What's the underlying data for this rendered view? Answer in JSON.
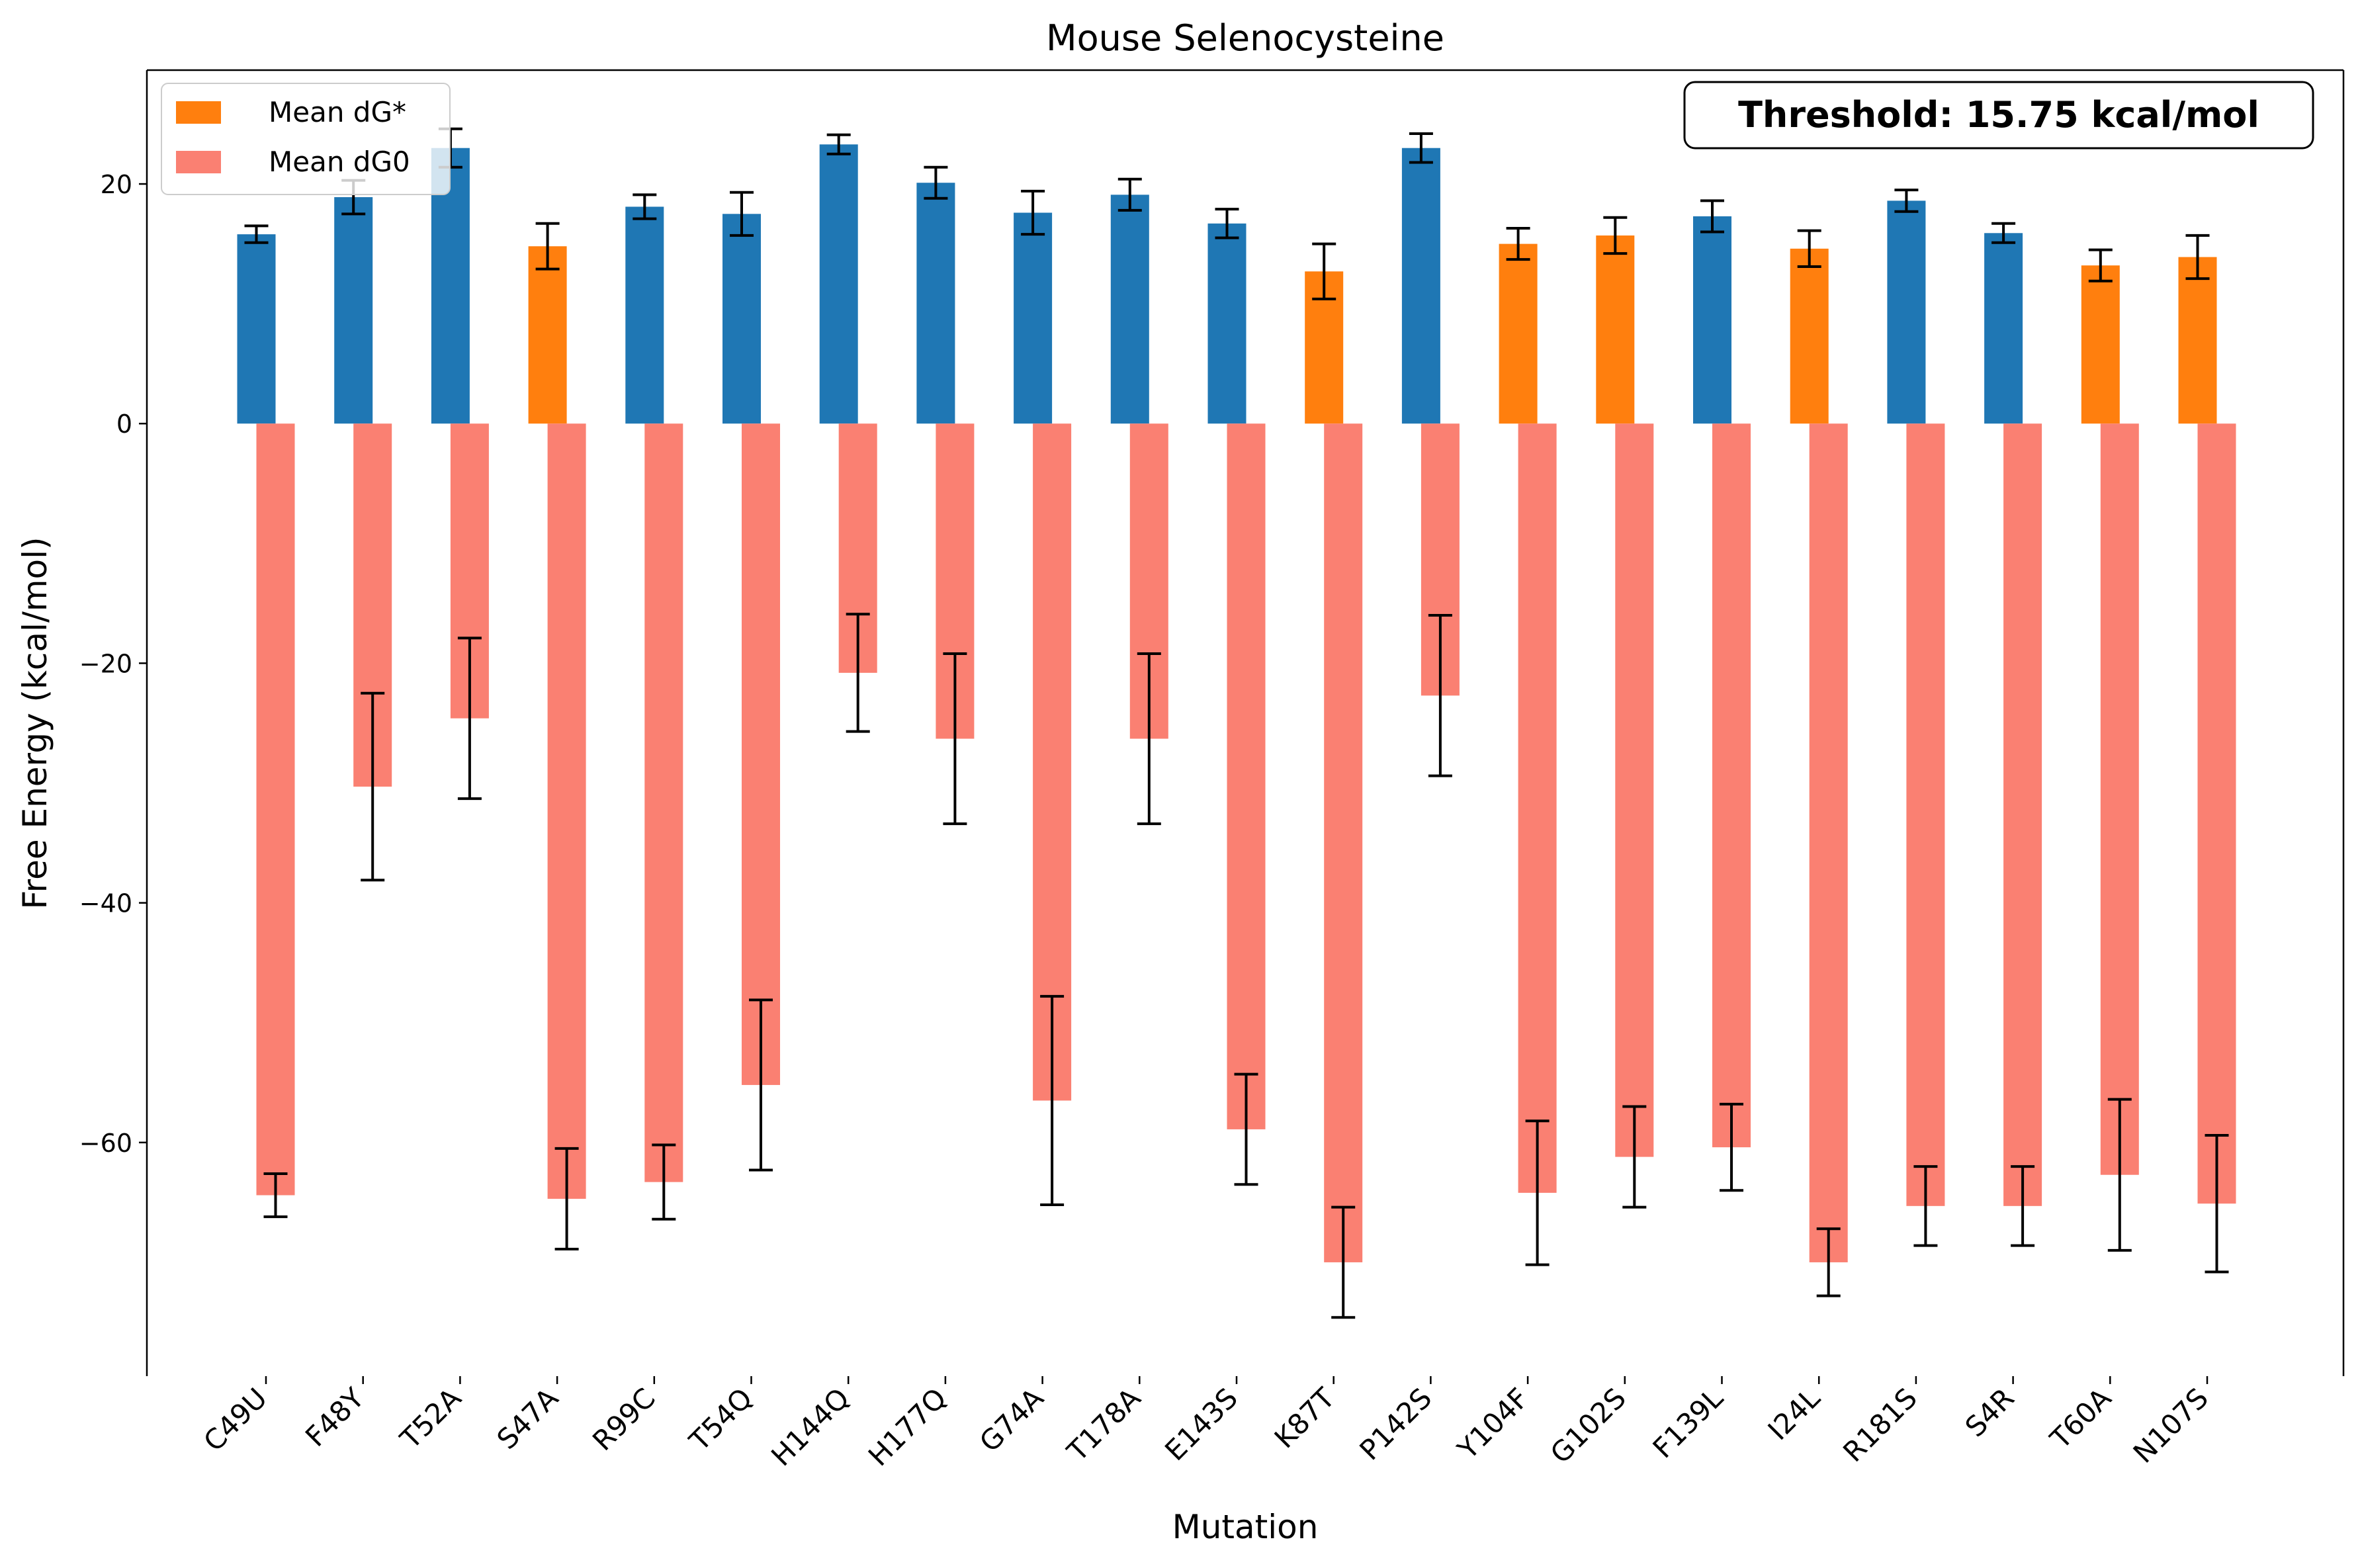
{
  "chart_data": {
    "type": "bar",
    "title": "Mouse Selenocysteine",
    "xlabel": "Mutation",
    "ylabel": "Free Energy (kcal/mol)",
    "ylim": [
      -79.5,
      29.5
    ],
    "yticks": [
      -60,
      -40,
      -20,
      0,
      20
    ],
    "ytick_labels": [
      "−60",
      "−40",
      "−20",
      "0",
      "20"
    ],
    "grid": false,
    "legend_position": "top-left",
    "annotation": "Threshold: 15.75 kcal/mol",
    "threshold": 15.75,
    "colors": {
      "dg_star_below": "#ff7f0e",
      "dg_star_above": "#1f77b4",
      "dg0": "#fa8072",
      "errorbar": "#000000"
    },
    "categories": [
      "C49U",
      "F48Y",
      "T52A",
      "S47A",
      "R99C",
      "T54Q",
      "H144Q",
      "H177Q",
      "G74A",
      "T178A",
      "E143S",
      "K87T",
      "P142S",
      "Y104F",
      "G102S",
      "F139L",
      "I24L",
      "R181S",
      "S4R",
      "T60A",
      "N107S"
    ],
    "series": [
      {
        "name": "Mean dG*",
        "values": [
          15.8,
          18.9,
          23.0,
          14.8,
          18.1,
          17.5,
          23.3,
          20.1,
          17.6,
          19.1,
          16.7,
          12.7,
          23.0,
          15.0,
          15.7,
          17.3,
          14.6,
          18.6,
          15.9,
          13.2,
          13.9
        ],
        "errors": [
          0.7,
          1.4,
          1.6,
          1.9,
          1.0,
          1.8,
          0.8,
          1.3,
          1.8,
          1.3,
          1.2,
          2.3,
          1.2,
          1.3,
          1.5,
          1.3,
          1.5,
          0.9,
          0.8,
          1.3,
          1.8
        ]
      },
      {
        "name": "Mean dG0",
        "values": [
          -64.4,
          -30.3,
          -24.6,
          -64.7,
          -63.3,
          -55.2,
          -20.8,
          -26.3,
          -56.5,
          -26.3,
          -58.9,
          -70.0,
          -22.7,
          -64.2,
          -61.2,
          -60.4,
          -70.0,
          -65.3,
          -65.3,
          -62.7,
          -65.1
        ],
        "errors": [
          1.8,
          7.8,
          6.7,
          4.2,
          3.1,
          7.1,
          4.9,
          7.1,
          8.7,
          7.1,
          4.6,
          4.6,
          6.7,
          6.0,
          4.2,
          3.6,
          2.8,
          3.3,
          3.3,
          6.3,
          5.7
        ]
      }
    ]
  }
}
